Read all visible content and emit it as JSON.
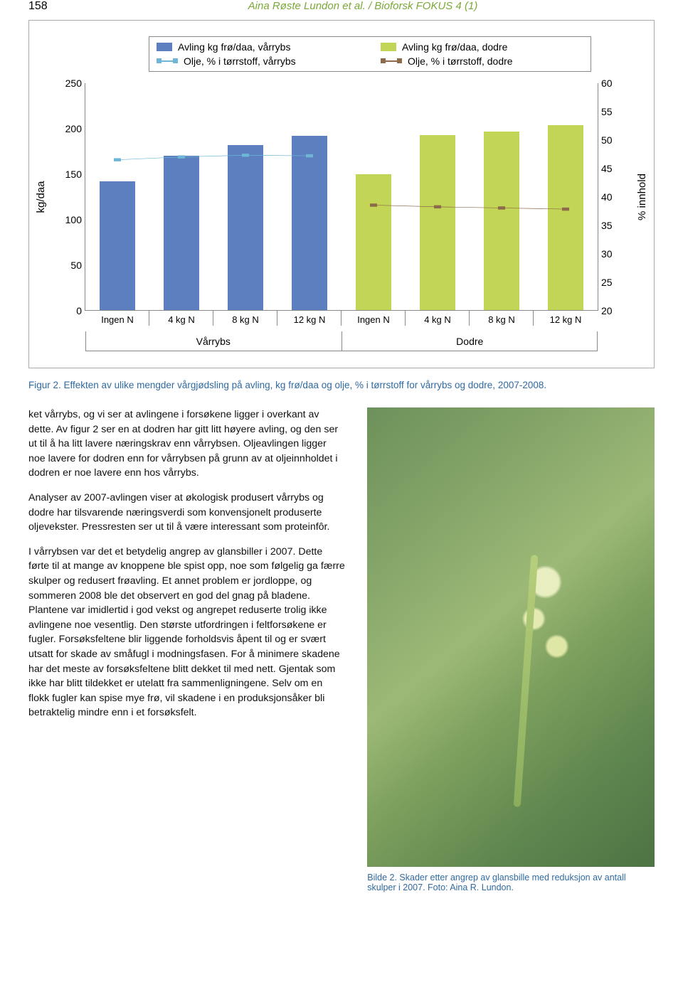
{
  "page_number": "158",
  "running_head": "Aina Røste Lundon et al. / Bioforsk FOKUS 4 (1)",
  "chart": {
    "type": "bar_with_lines_dual_axis",
    "legend": {
      "bar_varrybs": "Avling kg frø/daa, vårrybs",
      "bar_dodre": "Avling kg frø/daa, dodre",
      "line_varrybs": "Olje, % i tørrstoff, vårrybs",
      "line_dodre": "Olje, % i tørrstoff, dodre"
    },
    "colors": {
      "bar_varrybs": "#5b7fbf",
      "bar_dodre": "#c3d556",
      "line_varrybs": "#6fb6d6",
      "line_dodre": "#8c6a4a",
      "axis": "#888888",
      "text": "#000000"
    },
    "left_axis": {
      "label": "kg/daa",
      "min": 0,
      "max": 250,
      "step": 50
    },
    "right_axis": {
      "label": "% innhold",
      "min": 20,
      "max": 60,
      "step": 5
    },
    "supercategories": [
      "Vårrybs",
      "Dodre"
    ],
    "categories": [
      "Ingen N",
      "4 kg N",
      "8 kg N",
      "12 kg N",
      "Ingen N",
      "4 kg N",
      "8 kg N",
      "12 kg N"
    ],
    "bar_values": [
      142,
      170,
      182,
      192,
      150,
      193,
      197,
      204
    ],
    "bar_series": [
      0,
      0,
      0,
      0,
      1,
      1,
      1,
      1
    ],
    "line_varrybs_vals": [
      46.5,
      47,
      47.3,
      47.2
    ],
    "line_dodre_vals": [
      38.5,
      38.2,
      38.0,
      37.8
    ]
  },
  "fig_caption": "Figur 2. Effekten av ulike mengder vårgjødsling på avling, kg frø/daa og olje, % i tørrstoff for vårrybs og dodre, 2007-2008.",
  "paragraphs": [
    "ket vårrybs, og vi ser at avlingene i forsøkene ligger i overkant av dette. Av figur 2 ser en at dodren har gitt litt høyere avling, og den ser ut til å ha litt lavere næringskrav enn vårrybsen. Oljeavlingen ligger noe lavere for dodren enn for vårrybsen på grunn av at oljeinnholdet i dodren er noe lavere enn hos vårrybs.",
    "Analyser av 2007-avlingen viser at økologisk produsert vårrybs og dodre har tilsvarende næringsverdi som konvensjonelt produserte oljevekster. Pressresten ser ut til å være interessant som proteinfôr.",
    "I vårrybsen var det et betydelig angrep av glansbiller i 2007. Dette førte til at mange av knoppene ble spist opp, noe som følgelig ga færre skulper og redusert frøavling. Et annet problem er jordloppe, og sommeren 2008 ble det observert en god del gnag på bladene. Plantene var imidlertid i god vekst og angrepet reduserte trolig ikke avlingene noe vesentlig. Den største utfordringen i feltforsøkene er fugler. Forsøksfeltene blir liggende forholdsvis åpent til og er svært utsatt for skade av småfugl i modningsfasen. For å minimere skadene har det meste av forsøksfeltene blitt dekket til med nett. Gjentak som ikke har blitt tildekket er utelatt fra sammenligningene. Selv om en flokk fugler kan spise mye frø, vil skadene i en produksjonsåker bli betraktelig mindre enn i et forsøksfelt."
  ],
  "photo_caption": "Bilde 2. Skader etter angrep av glansbille med reduksjon av antall skulper i 2007. Foto: Aina R. Lundon."
}
